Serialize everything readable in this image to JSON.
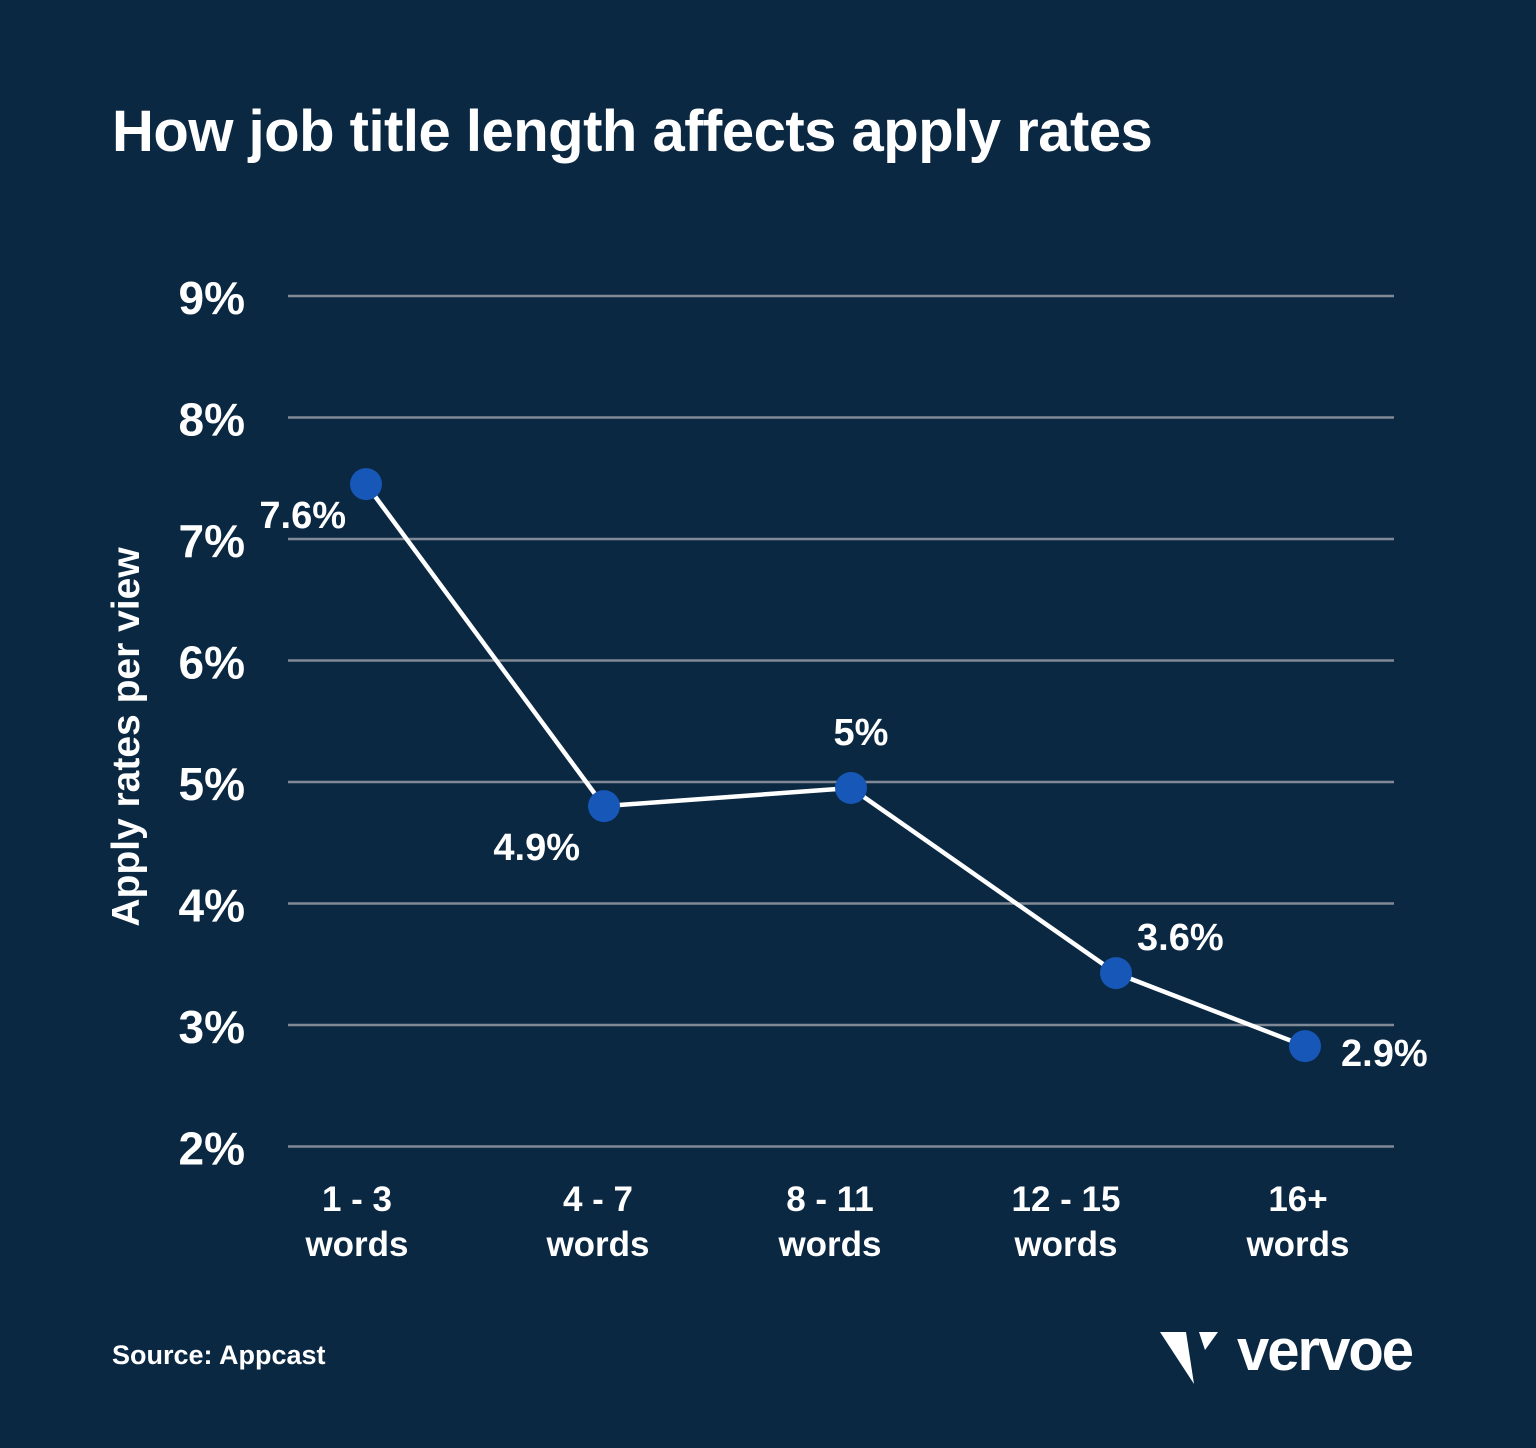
{
  "page": {
    "background": "#0b2843",
    "text_color": "#ffffff"
  },
  "title": "How job title length affects apply rates",
  "source": "Source: Appcast",
  "brand": {
    "name": "vervoe",
    "mark_icon": "vervoe-check-mark"
  },
  "chart_data": {
    "type": "line",
    "title": "How job title length affects apply rates",
    "xlabel": "",
    "ylabel": "Apply rates per view",
    "categories": [
      "1 - 3",
      "4 - 7",
      "8 - 11",
      "12 - 15",
      "16+"
    ],
    "category_suffix": "words",
    "values": [
      7.6,
      4.9,
      5.0,
      3.6,
      2.9
    ],
    "point_labels": [
      "7.6%",
      "4.9%",
      "5%",
      "3.6%",
      "2.9%"
    ],
    "y_ticks": [
      {
        "value": 9,
        "label": "9%"
      },
      {
        "value": 8,
        "label": "8%"
      },
      {
        "value": 7,
        "label": "7%"
      },
      {
        "value": 6,
        "label": "6%"
      },
      {
        "value": 5,
        "label": "5%"
      },
      {
        "value": 4,
        "label": "4%"
      },
      {
        "value": 3,
        "label": "3%"
      },
      {
        "value": 2,
        "label": "2%"
      }
    ],
    "ylim": [
      2,
      9
    ],
    "grid": "horizontal",
    "legend": "none",
    "colors": {
      "background": "#0b2843",
      "line": "#ffffff",
      "marker": "#1757b8",
      "gridline": "#8d949e",
      "text": "#ffffff"
    }
  }
}
